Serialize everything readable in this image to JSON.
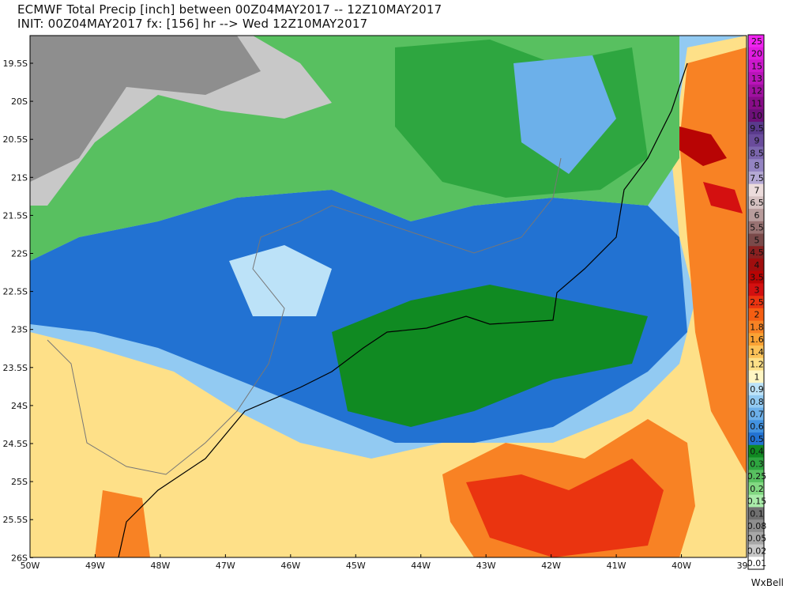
{
  "header": {
    "line1": "ECMWF Total Precip [inch] between 00Z04MAY2017 -- 12Z10MAY2017",
    "line2": "INIT: 00Z04MAY2017 fx: [156] hr --> Wed 12Z10MAY2017"
  },
  "map": {
    "lat_labels": [
      "19.5S",
      "20S",
      "20.5S",
      "21S",
      "21.5S",
      "22S",
      "22.5S",
      "23S",
      "23.5S",
      "24S",
      "24.5S",
      "25S",
      "25.5S",
      "26S"
    ],
    "lon_labels": [
      "50W",
      "49W",
      "48W",
      "47W",
      "46W",
      "45W",
      "44W",
      "43W",
      "42W",
      "41W",
      "40W",
      "39W"
    ]
  },
  "legend": {
    "levels": [
      {
        "label": "25",
        "color": "#f022f0"
      },
      {
        "label": "20",
        "color": "#e01ce0"
      },
      {
        "label": "15",
        "color": "#cc18cc"
      },
      {
        "label": "13",
        "color": "#b814b8"
      },
      {
        "label": "12",
        "color": "#a010a0"
      },
      {
        "label": "11",
        "color": "#880c88"
      },
      {
        "label": "10",
        "color": "#6c1078"
      },
      {
        "label": "9.5",
        "color": "#5a3a8c"
      },
      {
        "label": "9",
        "color": "#6a4c9c"
      },
      {
        "label": "8.5",
        "color": "#7c66ae"
      },
      {
        "label": "8",
        "color": "#9484c2"
      },
      {
        "label": "7.5",
        "color": "#b4a8d4"
      },
      {
        "label": "7",
        "color": "#ecdcdc"
      },
      {
        "label": "6.5",
        "color": "#d6c2c2"
      },
      {
        "label": "6",
        "color": "#b89c9c"
      },
      {
        "label": "5.5",
        "color": "#987272"
      },
      {
        "label": "5",
        "color": "#7a4a4a"
      },
      {
        "label": "4.5",
        "color": "#8a2020"
      },
      {
        "label": "4",
        "color": "#a00e0e"
      },
      {
        "label": "3.5",
        "color": "#b80404"
      },
      {
        "label": "3",
        "color": "#d41010"
      },
      {
        "label": "2.5",
        "color": "#ea3410"
      },
      {
        "label": "2",
        "color": "#f55e12"
      },
      {
        "label": "1.8",
        "color": "#f88224"
      },
      {
        "label": "1.6",
        "color": "#faa234"
      },
      {
        "label": "1.4",
        "color": "#fcc258"
      },
      {
        "label": "1.2",
        "color": "#fee088"
      },
      {
        "label": "1",
        "color": "#fff6c4"
      },
      {
        "label": "0.9",
        "color": "#bce2f8"
      },
      {
        "label": "0.8",
        "color": "#92caf2"
      },
      {
        "label": "0.7",
        "color": "#6cb0ea"
      },
      {
        "label": "0.6",
        "color": "#4292e0"
      },
      {
        "label": "0.5",
        "color": "#2272d2"
      },
      {
        "label": "0.4",
        "color": "#108a22"
      },
      {
        "label": "0.3",
        "color": "#2ea640"
      },
      {
        "label": "0.25",
        "color": "#58c060"
      },
      {
        "label": "0.2",
        "color": "#82d882"
      },
      {
        "label": "0.15",
        "color": "#aaecaa"
      },
      {
        "label": "0.1",
        "color": "#707070"
      },
      {
        "label": "0.08",
        "color": "#8e8e8e"
      },
      {
        "label": "0.05",
        "color": "#a8a8a8"
      },
      {
        "label": "0.02",
        "color": "#c8c8c8"
      },
      {
        "label": "0.01",
        "color": "#ffffff"
      }
    ]
  },
  "credit": "WxBell"
}
